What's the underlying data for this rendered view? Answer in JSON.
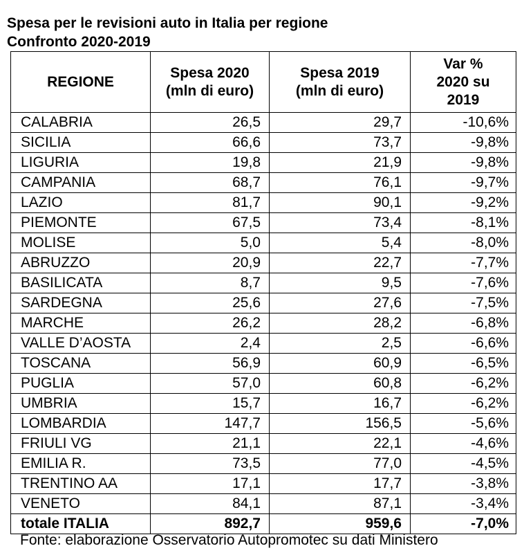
{
  "title_line1": "Spesa per le revisioni auto in Italia per regione",
  "title_line2": "Confronto 2020-2019",
  "headers": {
    "region": "REGIONE",
    "spend2020": [
      "Spesa 2020",
      "(mln di euro)"
    ],
    "spend2019": [
      "Spesa 2019",
      "(mln di euro)"
    ],
    "var": [
      "Var %",
      "2020 su",
      "2019"
    ]
  },
  "rows": [
    [
      "CALABRIA",
      "26,5",
      "29,7",
      "-10,6%"
    ],
    [
      "SICILIA",
      "66,6",
      "73,7",
      "-9,8%"
    ],
    [
      "LIGURIA",
      "19,8",
      "21,9",
      "-9,8%"
    ],
    [
      "CAMPANIA",
      "68,7",
      "76,1",
      "-9,7%"
    ],
    [
      "LAZIO",
      "81,7",
      "90,1",
      "-9,2%"
    ],
    [
      "PIEMONTE",
      "67,5",
      "73,4",
      "-8,1%"
    ],
    [
      "MOLISE",
      "5,0",
      "5,4",
      "-8,0%"
    ],
    [
      "ABRUZZO",
      "20,9",
      "22,7",
      "-7,7%"
    ],
    [
      "BASILICATA",
      "8,7",
      "9,5",
      "-7,6%"
    ],
    [
      "SARDEGNA",
      "25,6",
      "27,6",
      "-7,5%"
    ],
    [
      "MARCHE",
      "26,2",
      "28,2",
      "-6,8%"
    ],
    [
      "VALLE D’AOSTA",
      "2,4",
      "2,5",
      "-6,6%"
    ],
    [
      "TOSCANA",
      "56,9",
      "60,9",
      "-6,5%"
    ],
    [
      "PUGLIA",
      "57,0",
      "60,8",
      "-6,2%"
    ],
    [
      "UMBRIA",
      "15,7",
      "16,7",
      "-6,2%"
    ],
    [
      "LOMBARDIA",
      "147,7",
      "156,5",
      "-5,6%"
    ],
    [
      "FRIULI VG",
      "21,1",
      "22,1",
      "-4,6%"
    ],
    [
      "EMILIA R.",
      "73,5",
      "77,0",
      "-4,5%"
    ],
    [
      "TRENTINO AA",
      "17,1",
      "17,7",
      "-3,8%"
    ],
    [
      "VENETO",
      "84,1",
      "87,1",
      "-3,4%"
    ]
  ],
  "total": [
    "totale ITALIA",
    "892,7",
    "959,6",
    "-7,0%"
  ],
  "source": "Fonte: elaborazione Osservatorio Autopromotec su dati Ministero"
}
